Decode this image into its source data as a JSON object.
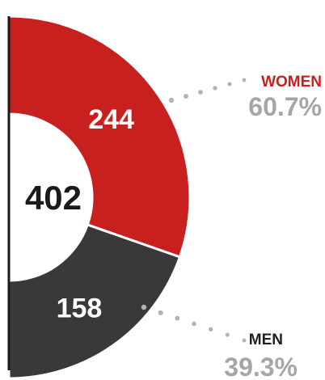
{
  "chart_data": {
    "type": "pie",
    "total": "402",
    "slices": [
      {
        "label": "WOMEN",
        "value": 244,
        "value_text": "244",
        "percent_text": "60.7%",
        "color": "#c8201e",
        "label_color": "#c8201e"
      },
      {
        "label": "MEN",
        "value": 158,
        "value_text": "158",
        "percent_text": "39.3%",
        "color": "#3a3838",
        "label_color": "#222222"
      }
    ],
    "axis_line_color": "#1a1a1a",
    "leader_color": "#b3b3b3"
  }
}
